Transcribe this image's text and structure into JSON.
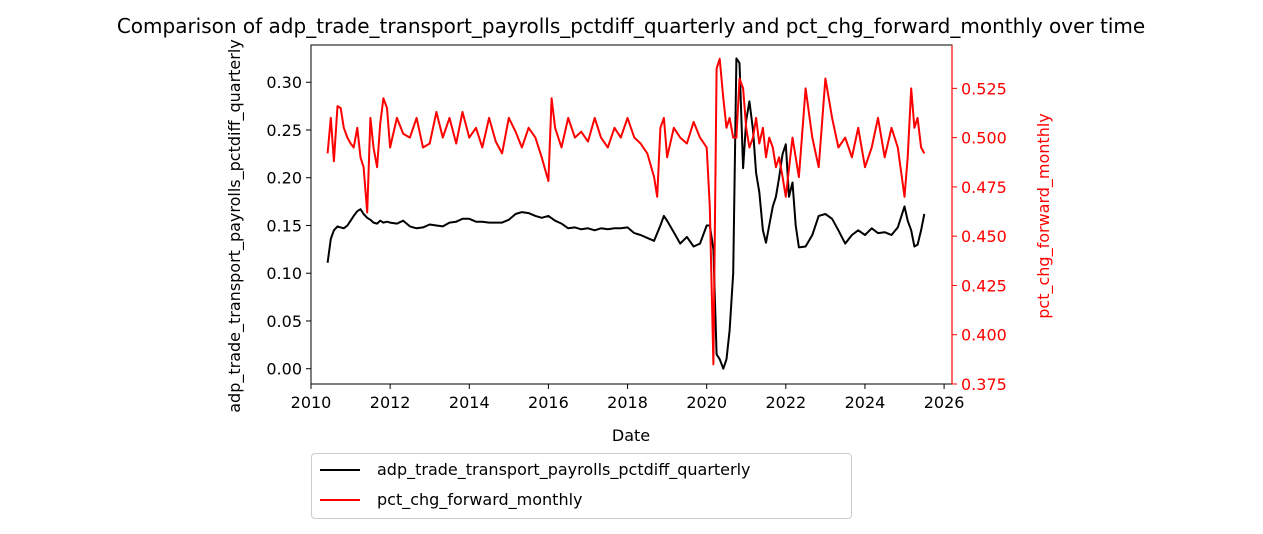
{
  "chart_data": {
    "type": "line",
    "title": "Comparison of adp_trade_transport_payrolls_pctdiff_quarterly and pct_chg_forward_monthly over time",
    "xlabel": "Date",
    "ylabel": "adp_trade_transport_payrolls_pctdiff_quarterly",
    "ylabel_right": "pct_chg_forward_monthly",
    "xlim": [
      2010.0,
      2026.2
    ],
    "ylim": [
      -0.016,
      0.339
    ],
    "ylim_right": [
      0.375,
      0.547
    ],
    "x_ticks": [
      "2010",
      "2012",
      "2014",
      "2016",
      "2018",
      "2020",
      "2022",
      "2024",
      "2026"
    ],
    "y_ticks": [
      "0.00",
      "0.05",
      "0.10",
      "0.15",
      "0.20",
      "0.25",
      "0.30"
    ],
    "y_ticks_right": [
      "0.375",
      "0.400",
      "0.425",
      "0.450",
      "0.475",
      "0.500",
      "0.525"
    ],
    "grid": false,
    "legend_position": "below",
    "series": [
      {
        "name": "adp_trade_transport_payrolls_pctdiff_quarterly",
        "axis": "left",
        "color": "#000000",
        "x": [
          2010.42,
          2010.5,
          2010.58,
          2010.67,
          2010.75,
          2010.83,
          2010.92,
          2011.0,
          2011.08,
          2011.17,
          2011.25,
          2011.33,
          2011.42,
          2011.5,
          2011.58,
          2011.67,
          2011.75,
          2011.83,
          2011.92,
          2012.0,
          2012.17,
          2012.33,
          2012.5,
          2012.67,
          2012.83,
          2013.0,
          2013.17,
          2013.33,
          2013.5,
          2013.67,
          2013.83,
          2014.0,
          2014.17,
          2014.33,
          2014.5,
          2014.67,
          2014.83,
          2015.0,
          2015.17,
          2015.33,
          2015.5,
          2015.67,
          2015.83,
          2016.0,
          2016.17,
          2016.33,
          2016.5,
          2016.67,
          2016.83,
          2017.0,
          2017.17,
          2017.33,
          2017.5,
          2017.67,
          2017.83,
          2018.0,
          2018.17,
          2018.33,
          2018.5,
          2018.67,
          2018.83,
          2018.92,
          2019.0,
          2019.17,
          2019.33,
          2019.5,
          2019.67,
          2019.83,
          2020.0,
          2020.08,
          2020.17,
          2020.25,
          2020.33,
          2020.42,
          2020.5,
          2020.58,
          2020.67,
          2020.75,
          2020.83,
          2020.92,
          2021.0,
          2021.08,
          2021.17,
          2021.25,
          2021.33,
          2021.42,
          2021.5,
          2021.58,
          2021.67,
          2021.75,
          2021.83,
          2021.92,
          2022.0,
          2022.08,
          2022.17,
          2022.25,
          2022.33,
          2022.5,
          2022.67,
          2022.83,
          2023.0,
          2023.17,
          2023.33,
          2023.5,
          2023.67,
          2023.83,
          2024.0,
          2024.17,
          2024.33,
          2024.5,
          2024.67,
          2024.83,
          2025.0,
          2025.08,
          2025.17,
          2025.25,
          2025.33,
          2025.42,
          2025.5
        ],
        "values": [
          0.111,
          0.136,
          0.145,
          0.149,
          0.148,
          0.147,
          0.15,
          0.155,
          0.16,
          0.165,
          0.167,
          0.162,
          0.158,
          0.156,
          0.153,
          0.152,
          0.155,
          0.153,
          0.154,
          0.153,
          0.152,
          0.155,
          0.149,
          0.147,
          0.148,
          0.151,
          0.15,
          0.149,
          0.153,
          0.154,
          0.157,
          0.157,
          0.154,
          0.154,
          0.153,
          0.153,
          0.153,
          0.156,
          0.162,
          0.164,
          0.163,
          0.16,
          0.158,
          0.16,
          0.155,
          0.152,
          0.147,
          0.148,
          0.146,
          0.147,
          0.145,
          0.147,
          0.146,
          0.147,
          0.147,
          0.148,
          0.142,
          0.14,
          0.137,
          0.134,
          0.15,
          0.16,
          0.155,
          0.143,
          0.131,
          0.138,
          0.128,
          0.131,
          0.15,
          0.15,
          0.125,
          0.015,
          0.01,
          0.0,
          0.01,
          0.04,
          0.1,
          0.325,
          0.32,
          0.21,
          0.26,
          0.28,
          0.25,
          0.205,
          0.185,
          0.145,
          0.132,
          0.15,
          0.17,
          0.18,
          0.2,
          0.225,
          0.235,
          0.18,
          0.195,
          0.15,
          0.127,
          0.128,
          0.14,
          0.16,
          0.162,
          0.157,
          0.145,
          0.131,
          0.14,
          0.145,
          0.14,
          0.147,
          0.142,
          0.143,
          0.14,
          0.148,
          0.17,
          0.155,
          0.145,
          0.128,
          0.13,
          0.145,
          0.162
        ]
      },
      {
        "name": "pct_chg_forward_monthly",
        "axis": "right",
        "color": "#ff0000",
        "x": [
          2010.42,
          2010.5,
          2010.58,
          2010.67,
          2010.75,
          2010.83,
          2010.92,
          2011.0,
          2011.08,
          2011.17,
          2011.25,
          2011.33,
          2011.42,
          2011.5,
          2011.58,
          2011.67,
          2011.75,
          2011.83,
          2011.92,
          2012.0,
          2012.17,
          2012.33,
          2012.5,
          2012.67,
          2012.83,
          2013.0,
          2013.17,
          2013.33,
          2013.5,
          2013.67,
          2013.83,
          2014.0,
          2014.17,
          2014.33,
          2014.5,
          2014.67,
          2014.83,
          2015.0,
          2015.17,
          2015.33,
          2015.5,
          2015.67,
          2015.83,
          2016.0,
          2016.08,
          2016.17,
          2016.33,
          2016.5,
          2016.67,
          2016.83,
          2017.0,
          2017.17,
          2017.33,
          2017.5,
          2017.67,
          2017.83,
          2018.0,
          2018.17,
          2018.33,
          2018.5,
          2018.67,
          2018.75,
          2018.83,
          2018.92,
          2019.0,
          2019.17,
          2019.33,
          2019.5,
          2019.67,
          2019.83,
          2020.0,
          2020.08,
          2020.17,
          2020.25,
          2020.33,
          2020.42,
          2020.5,
          2020.58,
          2020.67,
          2020.75,
          2020.83,
          2020.92,
          2021.0,
          2021.08,
          2021.17,
          2021.25,
          2021.33,
          2021.42,
          2021.5,
          2021.58,
          2021.67,
          2021.75,
          2021.83,
          2021.92,
          2022.0,
          2022.17,
          2022.33,
          2022.5,
          2022.67,
          2022.83,
          2023.0,
          2023.17,
          2023.33,
          2023.5,
          2023.67,
          2023.83,
          2024.0,
          2024.17,
          2024.33,
          2024.5,
          2024.67,
          2024.83,
          2025.0,
          2025.08,
          2025.17,
          2025.25,
          2025.33,
          2025.42,
          2025.5
        ],
        "values": [
          0.492,
          0.51,
          0.488,
          0.516,
          0.515,
          0.505,
          0.5,
          0.497,
          0.495,
          0.505,
          0.49,
          0.485,
          0.462,
          0.51,
          0.495,
          0.485,
          0.507,
          0.52,
          0.515,
          0.495,
          0.51,
          0.502,
          0.5,
          0.51,
          0.495,
          0.497,
          0.513,
          0.5,
          0.51,
          0.497,
          0.513,
          0.5,
          0.505,
          0.495,
          0.51,
          0.498,
          0.492,
          0.51,
          0.503,
          0.495,
          0.505,
          0.5,
          0.49,
          0.478,
          0.52,
          0.505,
          0.495,
          0.51,
          0.5,
          0.503,
          0.498,
          0.51,
          0.5,
          0.495,
          0.505,
          0.5,
          0.51,
          0.5,
          0.497,
          0.492,
          0.48,
          0.47,
          0.505,
          0.51,
          0.49,
          0.505,
          0.5,
          0.497,
          0.508,
          0.5,
          0.495,
          0.465,
          0.385,
          0.535,
          0.54,
          0.52,
          0.505,
          0.51,
          0.5,
          0.5,
          0.53,
          0.525,
          0.505,
          0.495,
          0.5,
          0.51,
          0.497,
          0.505,
          0.49,
          0.5,
          0.495,
          0.485,
          0.49,
          0.48,
          0.47,
          0.5,
          0.48,
          0.525,
          0.5,
          0.485,
          0.53,
          0.51,
          0.495,
          0.5,
          0.49,
          0.505,
          0.485,
          0.495,
          0.51,
          0.49,
          0.505,
          0.495,
          0.47,
          0.49,
          0.525,
          0.505,
          0.51,
          0.495,
          0.492
        ]
      }
    ]
  }
}
